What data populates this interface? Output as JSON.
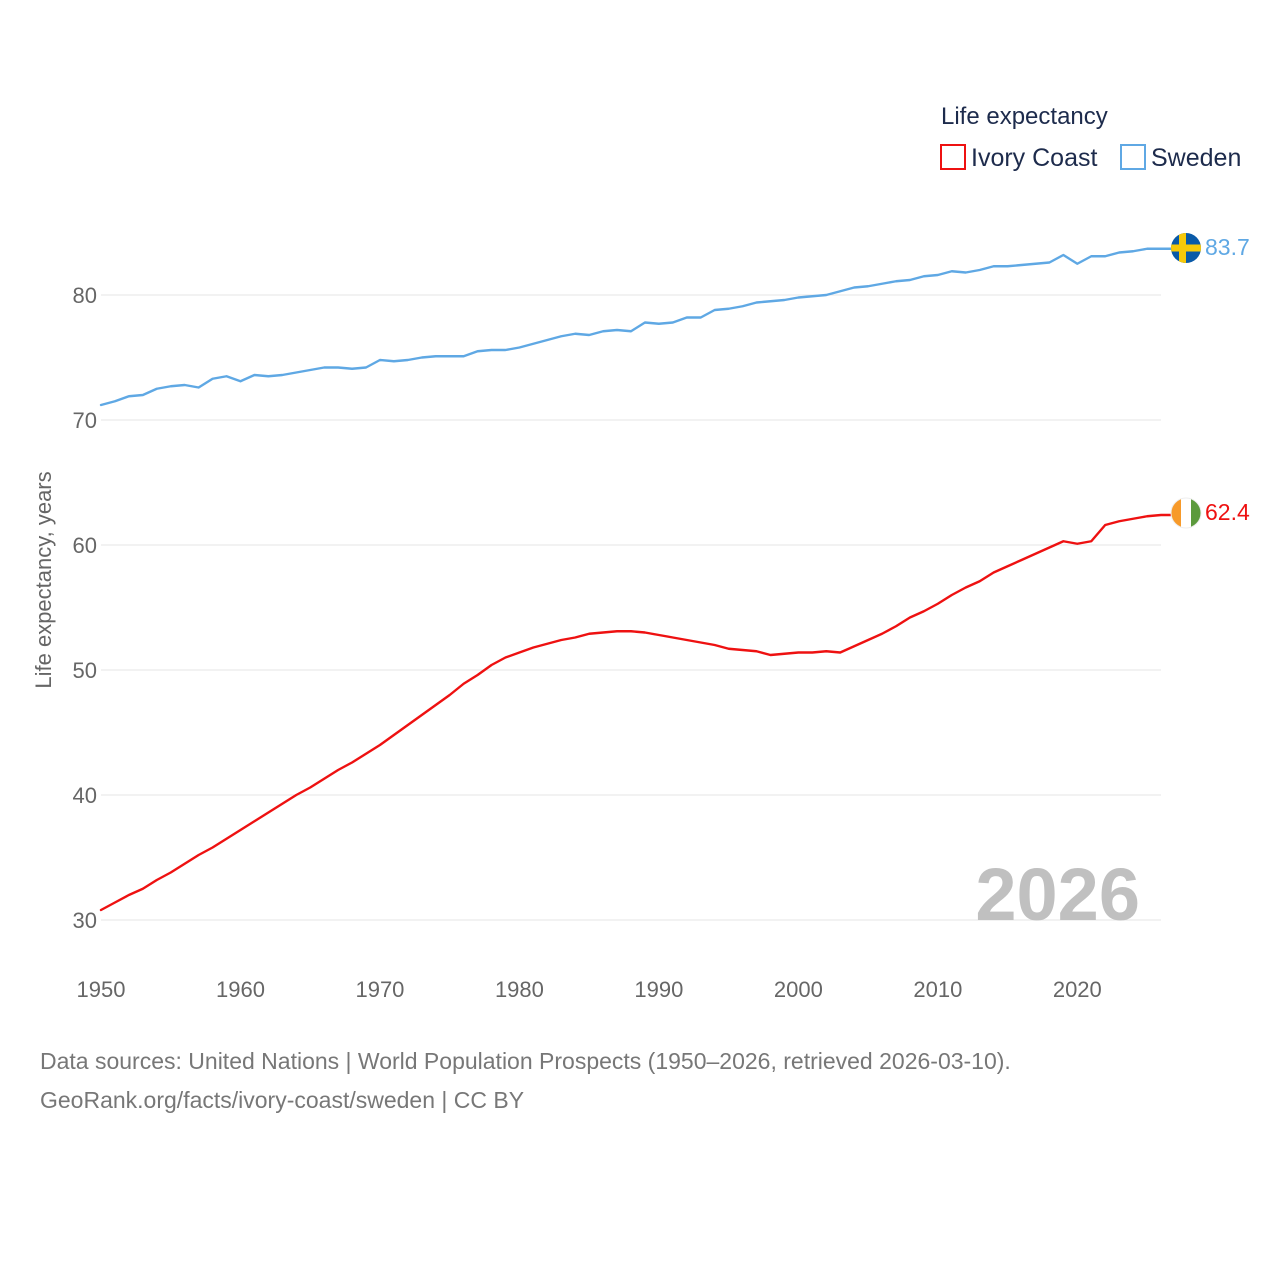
{
  "colors": {
    "ivory_coast": "#ee1111",
    "sweden": "#5fa8e4",
    "grid": "#e6e6e6"
  },
  "legend": {
    "title": "Life expectancy",
    "items": [
      "Ivory Coast",
      "Sweden"
    ]
  },
  "year_label": "2026",
  "end_labels": {
    "ivory_coast": "62.4",
    "sweden": "83.7"
  },
  "flags": {
    "ivory_coast": "ivory-coast-flag-icon",
    "sweden": "sweden-flag-icon"
  },
  "footer": {
    "line1": "Data sources: United Nations | World Population Prospects (1950–2026, retrieved 2026-03-10).",
    "line2": "GeoRank.org/facts/ivory-coast/sweden | CC BY"
  },
  "chart_data": {
    "type": "line",
    "title": "",
    "xlabel": "",
    "ylabel": "Life expectancy, years",
    "xlim": [
      1950,
      2026
    ],
    "ylim": [
      30,
      85
    ],
    "x_ticks": [
      "1950",
      "1960",
      "1970",
      "1980",
      "1990",
      "2000",
      "2010",
      "2020"
    ],
    "y_ticks": [
      "30",
      "40",
      "50",
      "60",
      "70",
      "80"
    ],
    "grid": true,
    "legend_position": "top-right",
    "x": [
      1950,
      1951,
      1952,
      1953,
      1954,
      1955,
      1956,
      1957,
      1958,
      1959,
      1960,
      1961,
      1962,
      1963,
      1964,
      1965,
      1966,
      1967,
      1968,
      1969,
      1970,
      1971,
      1972,
      1973,
      1974,
      1975,
      1976,
      1977,
      1978,
      1979,
      1980,
      1981,
      1982,
      1983,
      1984,
      1985,
      1986,
      1987,
      1988,
      1989,
      1990,
      1991,
      1992,
      1993,
      1994,
      1995,
      1996,
      1997,
      1998,
      1999,
      2000,
      2001,
      2002,
      2003,
      2004,
      2005,
      2006,
      2007,
      2008,
      2009,
      2010,
      2011,
      2012,
      2013,
      2014,
      2015,
      2016,
      2017,
      2018,
      2019,
      2020,
      2021,
      2022,
      2023,
      2024,
      2025,
      2026
    ],
    "series": [
      {
        "name": "Ivory Coast",
        "values": [
          30.8,
          31.4,
          32.0,
          32.5,
          33.2,
          33.8,
          34.5,
          35.2,
          35.8,
          36.5,
          37.2,
          37.9,
          38.6,
          39.3,
          40.0,
          40.6,
          41.3,
          42.0,
          42.6,
          43.3,
          44.0,
          44.8,
          45.6,
          46.4,
          47.2,
          48.0,
          48.9,
          49.6,
          50.4,
          51.0,
          51.4,
          51.8,
          52.1,
          52.4,
          52.6,
          52.9,
          53.0,
          53.1,
          53.1,
          53.0,
          52.8,
          52.6,
          52.4,
          52.2,
          52.0,
          51.7,
          51.6,
          51.5,
          51.2,
          51.3,
          51.4,
          51.4,
          51.5,
          51.4,
          51.9,
          52.4,
          52.9,
          53.5,
          54.2,
          54.7,
          55.3,
          56.0,
          56.6,
          57.1,
          57.8,
          58.3,
          58.8,
          59.3,
          59.8,
          60.3,
          60.1,
          60.3,
          61.6,
          61.9,
          62.1,
          62.3,
          62.4
        ]
      },
      {
        "name": "Sweden",
        "values": [
          71.2,
          71.5,
          71.9,
          72.0,
          72.5,
          72.7,
          72.8,
          72.6,
          73.3,
          73.5,
          73.1,
          73.6,
          73.5,
          73.6,
          73.8,
          74.0,
          74.2,
          74.2,
          74.1,
          74.2,
          74.8,
          74.7,
          74.8,
          75.0,
          75.1,
          75.1,
          75.1,
          75.5,
          75.6,
          75.6,
          75.8,
          76.1,
          76.4,
          76.7,
          76.9,
          76.8,
          77.1,
          77.2,
          77.1,
          77.8,
          77.7,
          77.8,
          78.2,
          78.2,
          78.8,
          78.9,
          79.1,
          79.4,
          79.5,
          79.6,
          79.8,
          79.9,
          80.0,
          80.3,
          80.6,
          80.7,
          80.9,
          81.1,
          81.2,
          81.5,
          81.6,
          81.9,
          81.8,
          82.0,
          82.3,
          82.3,
          82.4,
          82.5,
          82.6,
          83.2,
          82.5,
          83.1,
          83.1,
          83.4,
          83.5,
          83.7,
          83.7
        ]
      }
    ]
  }
}
